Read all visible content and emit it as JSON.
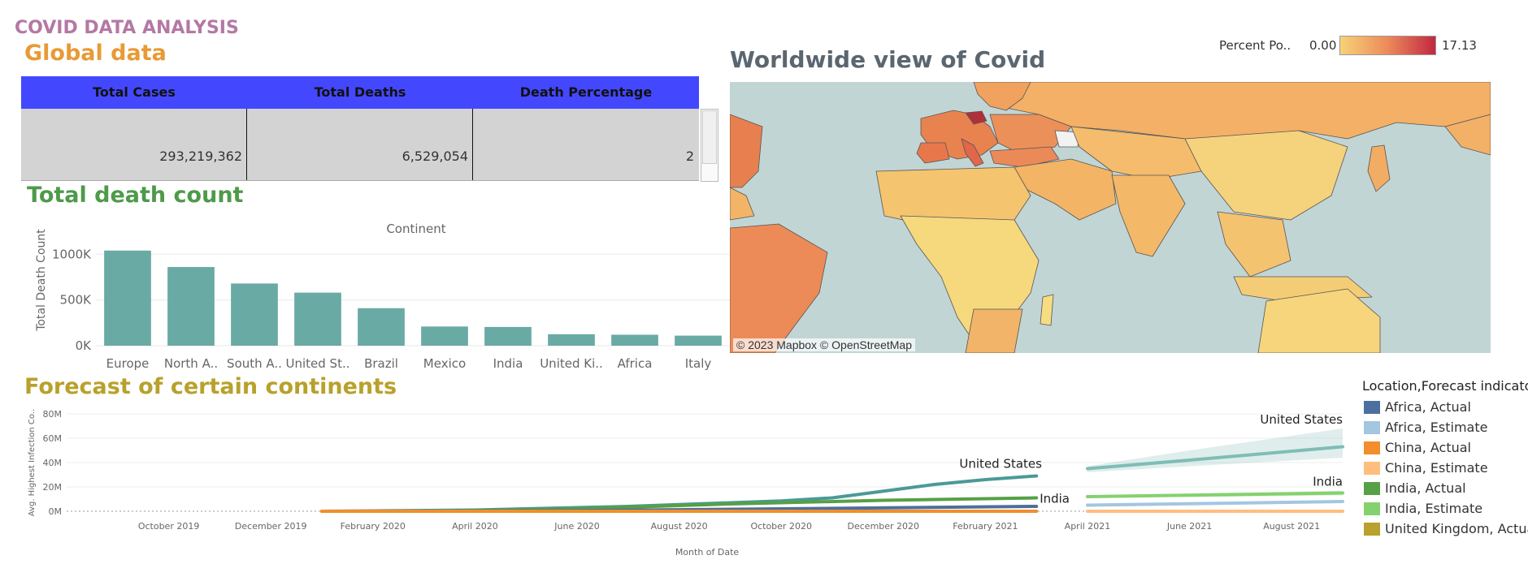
{
  "dashboard_title": "COVID DATA ANALYSIS",
  "global_section": {
    "title": "Global data",
    "columns": [
      "Total Cases",
      "Total Deaths",
      "Death Percentage"
    ],
    "values": [
      "293,219,362",
      "6,529,054",
      "2"
    ]
  },
  "death_section": {
    "title": "Total death count",
    "chart_data": {
      "type": "bar",
      "title": "Continent",
      "ylabel": "Total Death Count",
      "categories": [
        "Europe",
        "North A..",
        "South A..",
        "United St..",
        "Brazil",
        "Mexico",
        "India",
        "United Ki..",
        "Africa",
        "Italy"
      ],
      "values": [
        1040000,
        860000,
        680000,
        580000,
        410000,
        210000,
        205000,
        125000,
        120000,
        110000
      ],
      "ylim": [
        0,
        1100000
      ],
      "yticks": [
        0,
        500000,
        1000000
      ],
      "ytick_labels": [
        "0K",
        "500K",
        "1000K"
      ],
      "bar_color": "#69aaa4",
      "grid": true
    }
  },
  "map_section": {
    "title": "Worldwide view of Covid",
    "credit": "© 2023 Mapbox © OpenStreetMap",
    "legend": {
      "label": "Percent Po..",
      "min": "0.00",
      "max": "17.13"
    },
    "colors": {
      "water": "#c2d5d5",
      "low": "#f7d277",
      "mid": "#ec8a5a",
      "high": "#c22841"
    }
  },
  "forecast_section": {
    "title": "Forecast of certain continents",
    "chart_data": {
      "type": "line",
      "xlabel": "Month of Date",
      "ylabel": "Avg. Highest Infection Co..",
      "xlim": [
        "2019-08",
        "2021-09"
      ],
      "ylim": [
        0,
        80000000
      ],
      "yticks": [
        0,
        20000000,
        40000000,
        60000000,
        80000000
      ],
      "ytick_labels": [
        "0M",
        "20M",
        "40M",
        "60M",
        "80M"
      ],
      "xtick_labels": [
        "October 2019",
        "December 2019",
        "February 2020",
        "April 2020",
        "June 2020",
        "August 2020",
        "October 2020",
        "December 2020",
        "February 2021",
        "April 2021",
        "June 2021",
        "August 2021"
      ],
      "series": [
        {
          "name": "United States, Actual",
          "color": "#4b9a96",
          "label": "United States",
          "points": [
            [
              "2020-01",
              0
            ],
            [
              "2020-04",
              1000000
            ],
            [
              "2020-07",
              4000000
            ],
            [
              "2020-10",
              8500000
            ],
            [
              "2020-11",
              11000000
            ],
            [
              "2021-01",
              22000000
            ],
            [
              "2021-02",
              26000000
            ],
            [
              "2021-03",
              29000000
            ]
          ]
        },
        {
          "name": "United States, Estimate",
          "color": "#7fbdb5",
          "label": "United States",
          "band": true,
          "points": [
            [
              "2021-04",
              35000000
            ],
            [
              "2021-06",
              42000000
            ],
            [
              "2021-09",
              53000000
            ]
          ],
          "band_low": [
            32000000,
            37000000,
            44000000
          ],
          "band_high": [
            37000000,
            50000000,
            68000000
          ]
        },
        {
          "name": "India, Actual",
          "color": "#56a045",
          "label": "India",
          "points": [
            [
              "2020-03",
              0
            ],
            [
              "2020-06",
              2000000
            ],
            [
              "2020-09",
              6000000
            ],
            [
              "2020-12",
              9000000
            ],
            [
              "2021-03",
              11000000
            ]
          ]
        },
        {
          "name": "India, Estimate",
          "color": "#84d170",
          "label": "India",
          "band": true,
          "points": [
            [
              "2021-04",
              12000000
            ],
            [
              "2021-09",
              15000000
            ]
          ],
          "band_low": [
            11000000,
            13000000
          ],
          "band_high": [
            13000000,
            17000000
          ]
        },
        {
          "name": "Africa, Actual",
          "color": "#4c6f9f",
          "points": [
            [
              "2020-02",
              0
            ],
            [
              "2020-06",
              500000
            ],
            [
              "2020-10",
              2000000
            ],
            [
              "2021-03",
              4000000
            ]
          ]
        },
        {
          "name": "Africa, Estimate",
          "color": "#a3c6e1",
          "points": [
            [
              "2021-04",
              5000000
            ],
            [
              "2021-09",
              8000000
            ]
          ]
        },
        {
          "name": "China, Actual",
          "color": "#f28e2b",
          "points": [
            [
              "2020-01",
              0
            ],
            [
              "2021-03",
              0
            ]
          ]
        },
        {
          "name": "China, Estimate",
          "color": "#ffbe7d",
          "points": [
            [
              "2021-04",
              0
            ],
            [
              "2021-09",
              0
            ]
          ]
        }
      ]
    },
    "legend": {
      "title": "Location,Forecast indicator",
      "items": [
        {
          "label": "Africa, Actual",
          "color": "#4c6f9f"
        },
        {
          "label": "Africa, Estimate",
          "color": "#a3c6e1"
        },
        {
          "label": "China, Actual",
          "color": "#f28e2b"
        },
        {
          "label": "China, Estimate",
          "color": "#ffbe7d"
        },
        {
          "label": "India, Actual",
          "color": "#56a045"
        },
        {
          "label": "India, Estimate",
          "color": "#84d170"
        },
        {
          "label": "United Kingdom, Actual",
          "color": "#b8a12c"
        }
      ]
    }
  }
}
